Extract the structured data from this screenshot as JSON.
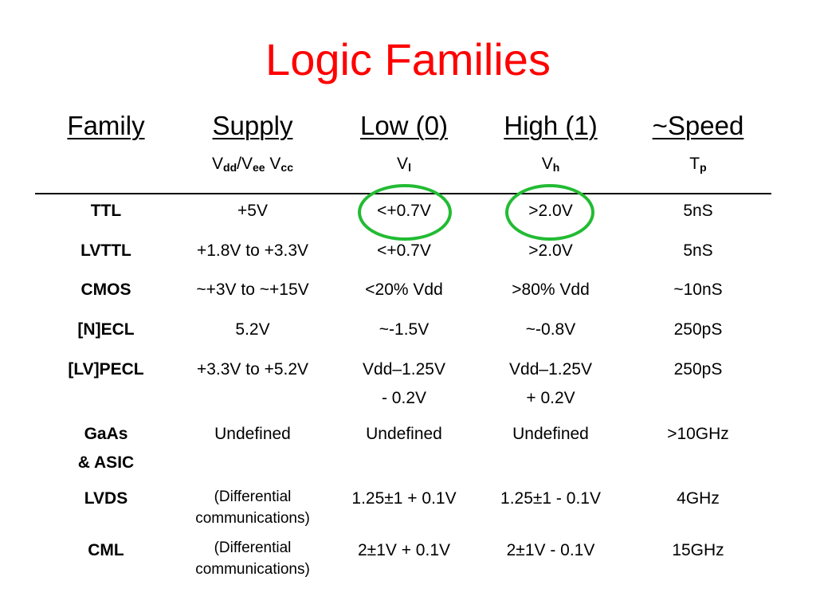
{
  "title": "Logic Families",
  "headers": {
    "family": "Family",
    "supply": "Supply",
    "low": "Low (0)",
    "high": "High (1)",
    "speed": "~Speed"
  },
  "symbols": {
    "supply_a": "V",
    "supply_a_sub": "dd",
    "supply_sep": "/V",
    "supply_b_sub": "ee",
    "supply_c": " V",
    "supply_c_sub": "cc",
    "low": "V",
    "low_sub": "l",
    "high": "V",
    "high_sub": "h",
    "speed": "T",
    "speed_sub": "p"
  },
  "rows": [
    {
      "family": "TTL",
      "supply": "+5V",
      "low": "<+0.7V",
      "high": ">2.0V",
      "speed": "5nS"
    },
    {
      "family": "LVTTL",
      "supply": "+1.8V to +3.3V",
      "low": "<+0.7V",
      "high": ">2.0V",
      "speed": "5nS"
    },
    {
      "family": "CMOS",
      "supply": "~+3V to ~+15V",
      "low": "<20% Vdd",
      "high": ">80% Vdd",
      "speed": "~10nS"
    },
    {
      "family": "[N]ECL",
      "supply": "5.2V",
      "low": "~-1.5V",
      "high": "~-0.8V",
      "speed": "250pS"
    },
    {
      "family": "[LV]PECL",
      "supply": "+3.3V to +5.2V",
      "low_1": "Vdd–1.25V",
      "low_2": "- 0.2V",
      "high_1": "Vdd–1.25V",
      "high_2": "+ 0.2V",
      "speed": "250pS"
    },
    {
      "family_1": "GaAs",
      "family_2": "& ASIC",
      "supply": "Undefined",
      "low": "Undefined",
      "high": "Undefined",
      "speed": ">10GHz"
    },
    {
      "family": "LVDS",
      "supply_1": "(Differential",
      "supply_2": "communications)",
      "low": "1.25±1 + 0.1V",
      "high": "1.25±1 - 0.1V",
      "speed": "4GHz"
    },
    {
      "family": "CML",
      "supply_1": "(Differential",
      "supply_2": "communications)",
      "low": "2±1V + 0.1V",
      "high": "2±1V - 0.1V",
      "speed": "15GHz"
    }
  ],
  "highlight_color": "#22bb33",
  "title_color": "#ff0000"
}
